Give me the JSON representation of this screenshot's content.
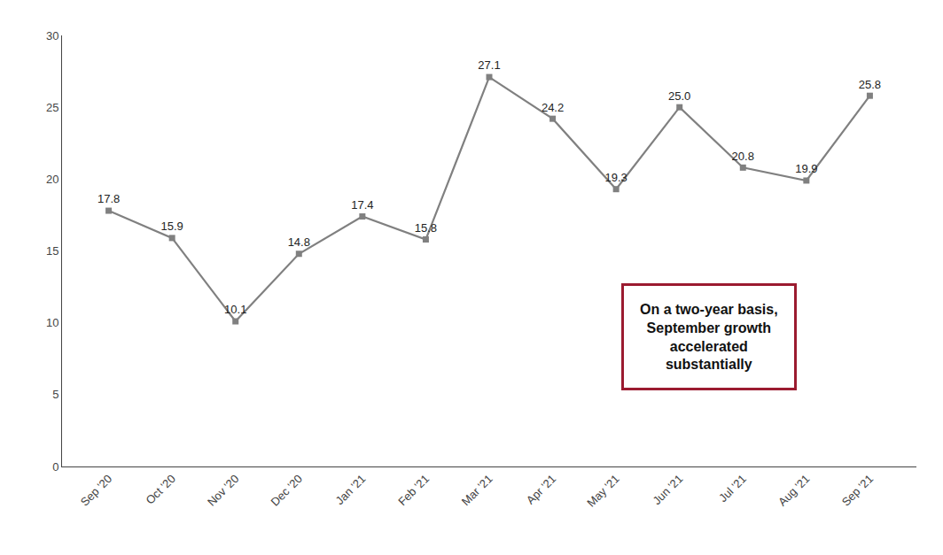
{
  "chart_data": {
    "type": "line",
    "categories": [
      "Sep '20",
      "Oct '20",
      "Nov '20",
      "Dec '20",
      "Jan '21",
      "Feb '21",
      "Mar '21",
      "Apr '21",
      "May '21",
      "Jun '21",
      "Jul '21",
      "Aug '21",
      "Sep '21"
    ],
    "values": [
      17.8,
      15.9,
      10.1,
      14.8,
      17.4,
      15.8,
      27.1,
      24.2,
      19.3,
      25.0,
      20.8,
      19.9,
      25.8
    ],
    "value_labels": [
      "17.8",
      "15.9",
      "10.1",
      "14.8",
      "17.4",
      "15.8",
      "27.1",
      "24.2",
      "19.3",
      "25.0",
      "20.8",
      "19.9",
      "25.8"
    ],
    "data_labels": true,
    "color": "#808080",
    "marker": "square",
    "line_style": "solid",
    "ylim": [
      0,
      30
    ],
    "yticks": [
      0,
      5,
      10,
      15,
      20,
      25,
      30
    ],
    "grid": false,
    "annotation": "On a two-year basis,\nSeptember growth\naccelerated\nsubstantially"
  }
}
